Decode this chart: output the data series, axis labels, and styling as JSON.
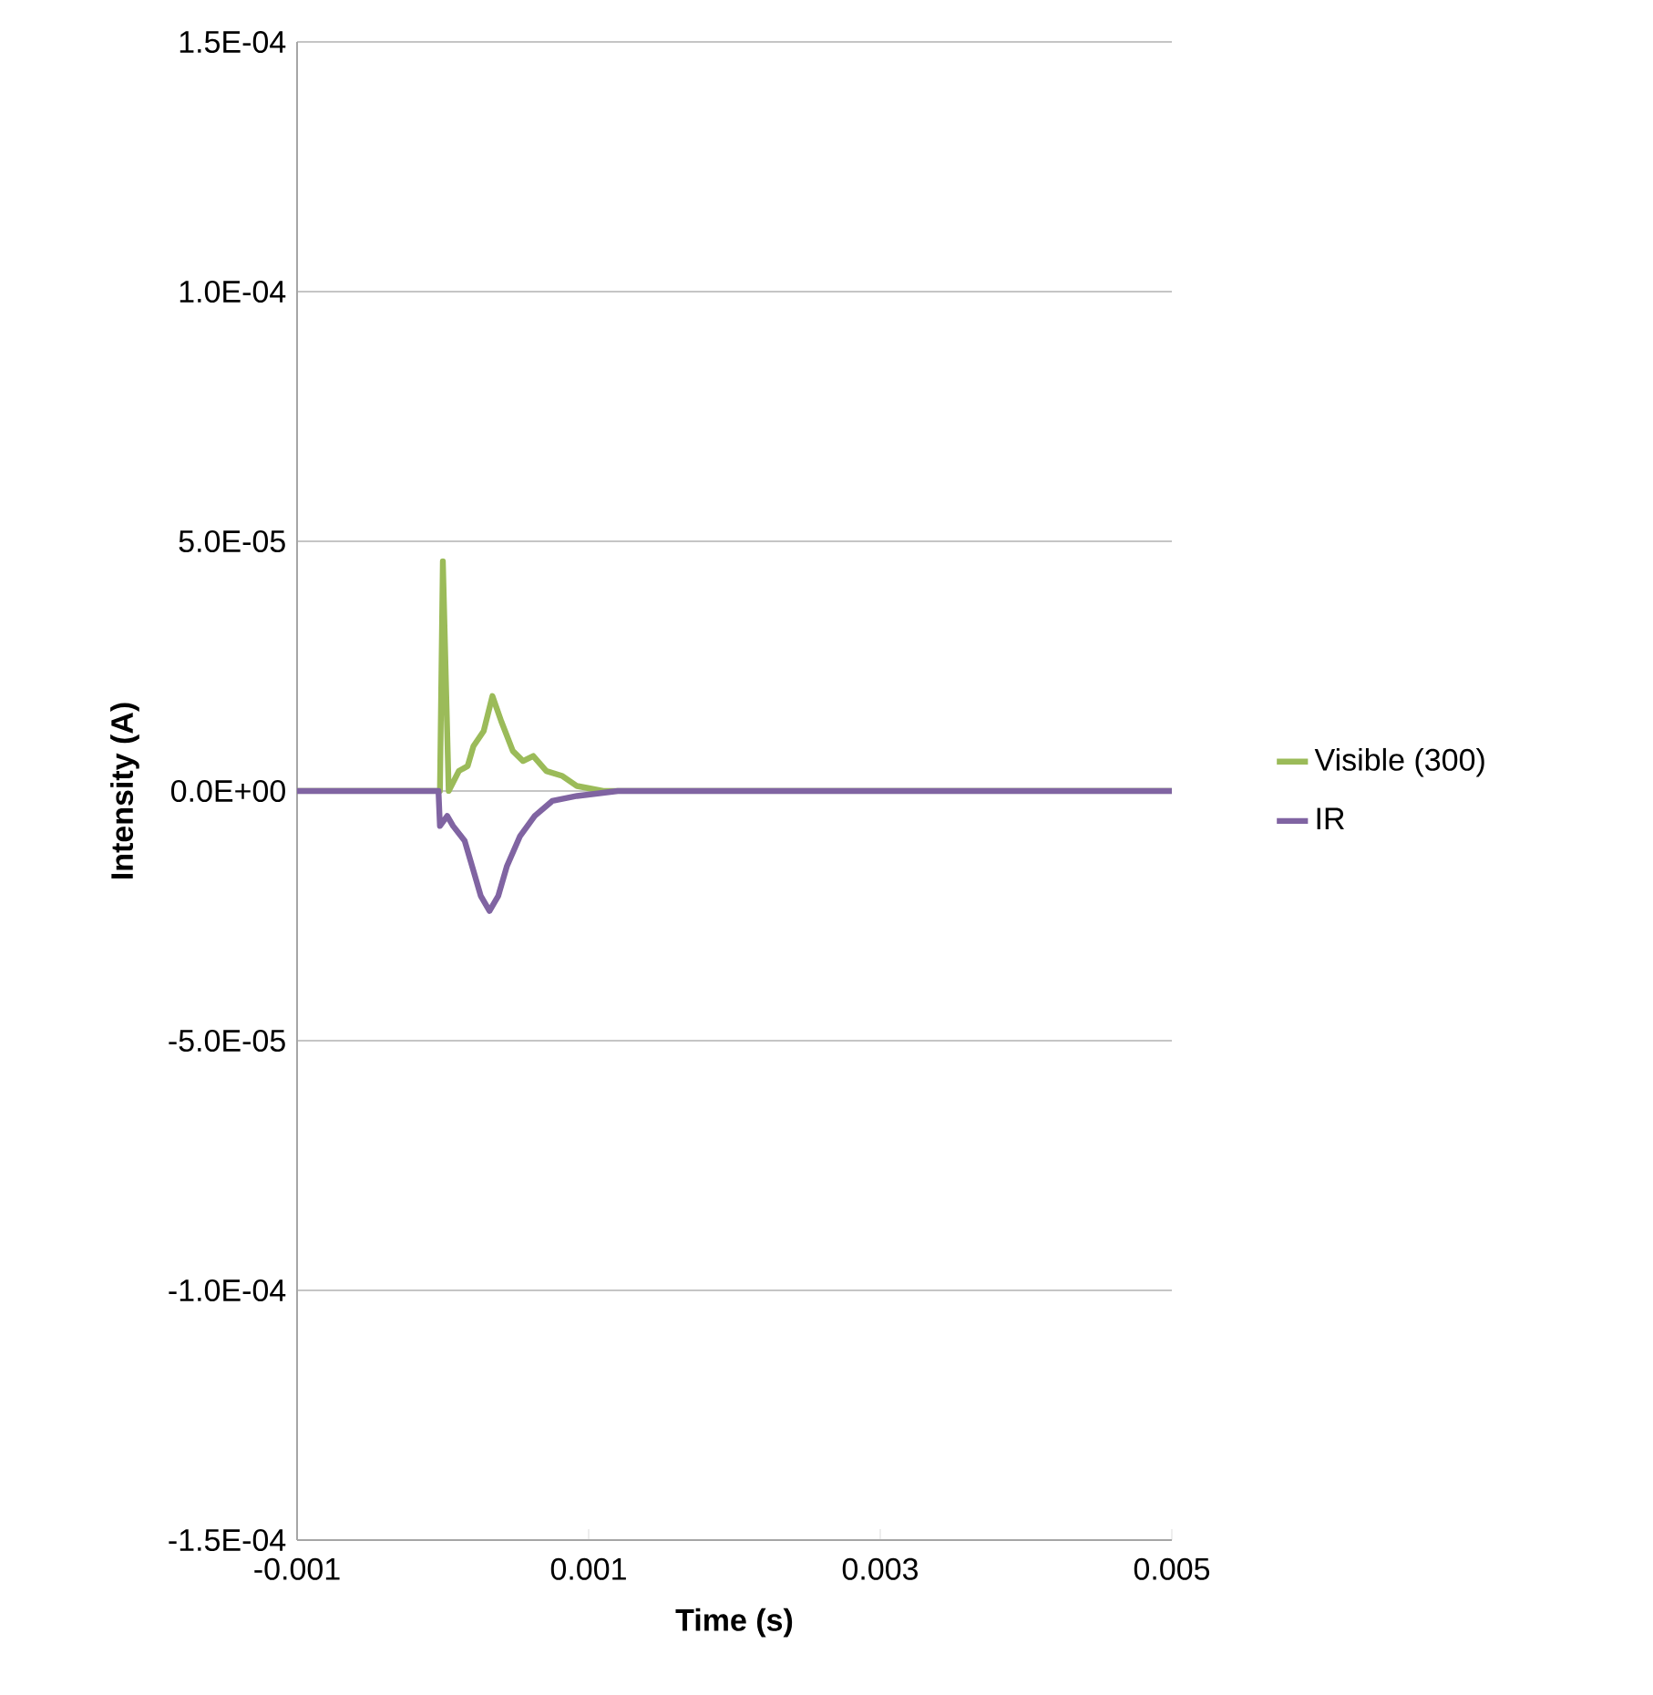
{
  "chart_data": {
    "type": "line",
    "xlabel": "Time (s)",
    "ylabel": "Intensity (A)",
    "xlim": [
      -0.001,
      0.005
    ],
    "xticks": [
      -0.001,
      0.001,
      0.003,
      0.005
    ],
    "ylim": [
      -0.00015,
      0.00015
    ],
    "yticks": [
      {
        "value": -0.00015,
        "label": "-1.5E-04"
      },
      {
        "value": -0.0001,
        "label": "-1.0E-04"
      },
      {
        "value": -5e-05,
        "label": "-5.0E-05"
      },
      {
        "value": 0,
        "label": "0.0E+00"
      },
      {
        "value": 5e-05,
        "label": "5.0E-05"
      },
      {
        "value": 0.0001,
        "label": "1.0E-04"
      },
      {
        "value": 0.00015,
        "label": "1.5E-04"
      }
    ],
    "grid": "y",
    "legend": "right",
    "marker": "none",
    "line_style": "solid",
    "series": [
      {
        "name": "Visible (300)",
        "color": "#9bbb59",
        "x": [
          -0.001,
          -0.0005,
          -2e-05,
          0.0,
          4e-05,
          0.00011,
          0.00017,
          0.00021,
          0.00028,
          0.00034,
          0.0004,
          0.00048,
          0.00055,
          0.00062,
          0.00071,
          0.00082,
          0.00092,
          0.0011,
          0.002,
          0.003,
          0.004,
          0.005
        ],
        "values": [
          0.0,
          0.0,
          0.0,
          4.6e-05,
          0.0,
          4e-06,
          5e-06,
          9e-06,
          1.2e-05,
          1.9e-05,
          1.4e-05,
          8e-06,
          6e-06,
          7e-06,
          4e-06,
          3e-06,
          1e-06,
          0.0,
          0.0,
          0.0,
          0.0,
          0.0
        ]
      },
      {
        "name": "IR",
        "color": "#8064a2",
        "x": [
          -0.001,
          -0.0005,
          -3e-05,
          -2e-05,
          3e-05,
          7e-05,
          0.00015,
          0.00021,
          0.00026,
          0.00032,
          0.00038,
          0.00044,
          0.00053,
          0.00063,
          0.00075,
          0.00092,
          0.0012,
          0.002,
          0.003,
          0.004,
          0.005
        ],
        "values": [
          0.0,
          0.0,
          0.0,
          -7e-06,
          -5e-06,
          -7e-06,
          -1e-05,
          -1.6e-05,
          -2.1e-05,
          -2.4e-05,
          -2.1e-05,
          -1.5e-05,
          -9e-06,
          -5e-06,
          -2e-06,
          -1e-06,
          0.0,
          0.0,
          0.0,
          0.0,
          0.0
        ]
      }
    ]
  }
}
